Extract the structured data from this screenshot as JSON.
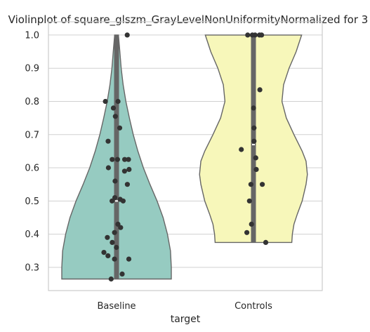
{
  "chart_data": {
    "type": "violin",
    "title": "Violinplot of square_glszm_GrayLevelNonUniformityNormalized for 3",
    "xlabel": "target",
    "ylabel": "",
    "categories": [
      "Baseline",
      "Controls"
    ],
    "ylim": [
      0.23,
      1.04
    ],
    "yticks": [
      0.3,
      0.4,
      0.5,
      0.6,
      0.7,
      0.8,
      0.9,
      1.0
    ],
    "ytick_labels": [
      "0.3",
      "0.4",
      "0.5",
      "0.6",
      "0.7",
      "0.8",
      "0.9",
      "1.0"
    ],
    "grid": true,
    "colors": {
      "Baseline": "#96cbc1",
      "Controls": "#f7f7ba"
    },
    "series": [
      {
        "category": "Baseline",
        "profile": [
          [
            0.265,
            1.0
          ],
          [
            0.3,
            1.0
          ],
          [
            0.35,
            0.985
          ],
          [
            0.4,
            0.93
          ],
          [
            0.45,
            0.85
          ],
          [
            0.5,
            0.74
          ],
          [
            0.55,
            0.61
          ],
          [
            0.6,
            0.49
          ],
          [
            0.65,
            0.39
          ],
          [
            0.7,
            0.305
          ],
          [
            0.75,
            0.235
          ],
          [
            0.8,
            0.17
          ],
          [
            0.85,
            0.12
          ],
          [
            0.9,
            0.085
          ],
          [
            0.95,
            0.06
          ],
          [
            0.98,
            0.045
          ],
          [
            1.0,
            0.035
          ]
        ],
        "box": {
          "q1": 0.265,
          "q3": 1.0,
          "median": 0.5
        },
        "points": [
          1.0,
          0.8,
          0.8,
          0.78,
          0.755,
          0.72,
          0.68,
          0.625,
          0.625,
          0.625,
          0.625,
          0.6,
          0.595,
          0.59,
          0.56,
          0.55,
          0.51,
          0.505,
          0.5,
          0.5,
          0.43,
          0.42,
          0.405,
          0.39,
          0.375,
          0.36,
          0.345,
          0.335,
          0.325,
          0.325,
          0.28,
          0.265
        ]
      },
      {
        "category": "Controls",
        "profile": [
          [
            0.375,
            0.7
          ],
          [
            0.4,
            0.71
          ],
          [
            0.43,
            0.74
          ],
          [
            0.46,
            0.8
          ],
          [
            0.5,
            0.89
          ],
          [
            0.55,
            0.96
          ],
          [
            0.58,
            0.985
          ],
          [
            0.62,
            0.96
          ],
          [
            0.65,
            0.89
          ],
          [
            0.7,
            0.74
          ],
          [
            0.75,
            0.6
          ],
          [
            0.8,
            0.52
          ],
          [
            0.85,
            0.55
          ],
          [
            0.9,
            0.65
          ],
          [
            0.95,
            0.78
          ],
          [
            1.0,
            0.88
          ]
        ],
        "box": {
          "q1": 0.375,
          "q3": 1.0,
          "median": 0.67
        },
        "points": [
          1.0,
          1.0,
          1.0,
          1.0,
          1.0,
          0.835,
          0.78,
          0.72,
          0.68,
          0.655,
          0.63,
          0.595,
          0.55,
          0.55,
          0.5,
          0.43,
          0.405,
          0.375
        ]
      }
    ]
  }
}
